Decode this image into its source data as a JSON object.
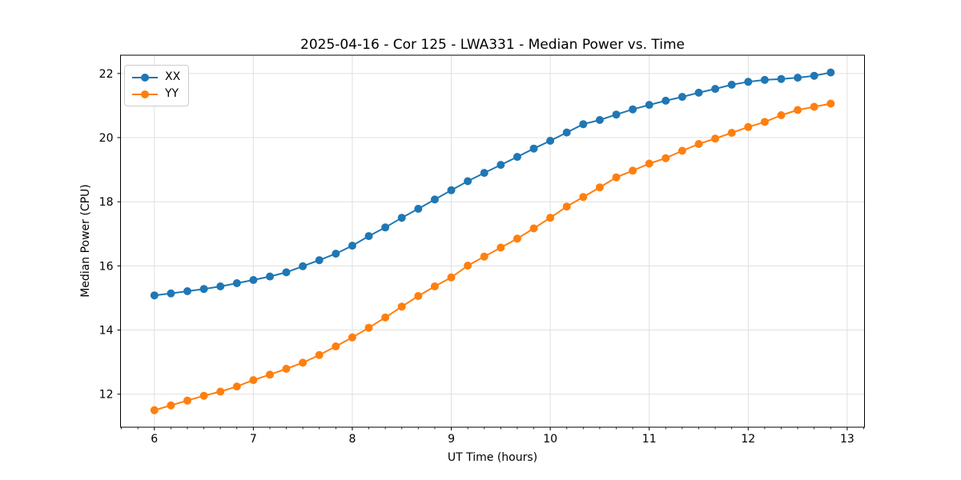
{
  "chart_data": {
    "type": "line",
    "title": "2025-04-16 - Cor 125 - LWA331 - Median Power vs. Time",
    "xlabel": "UT Time (hours)",
    "ylabel": "Median Power (CPU)",
    "x": [
      6.0,
      6.1667,
      6.3333,
      6.5,
      6.6667,
      6.8333,
      7.0,
      7.1667,
      7.3333,
      7.5,
      7.6667,
      7.8333,
      8.0,
      8.1667,
      8.3333,
      8.5,
      8.6667,
      8.8333,
      9.0,
      9.1667,
      9.3333,
      9.5,
      9.6667,
      9.8333,
      10.0,
      10.1667,
      10.3333,
      10.5,
      10.6667,
      10.8333,
      11.0,
      11.1667,
      11.3333,
      11.5,
      11.6667,
      11.8333,
      12.0,
      12.1667,
      12.3333,
      12.5,
      12.6667,
      12.8333
    ],
    "series": [
      {
        "name": "XX",
        "color": "#1f77b4",
        "values": [
          15.08,
          15.14,
          15.21,
          15.28,
          15.36,
          15.46,
          15.56,
          15.67,
          15.8,
          15.99,
          16.18,
          16.38,
          16.63,
          16.93,
          17.2,
          17.5,
          17.78,
          18.07,
          18.36,
          18.64,
          18.9,
          19.15,
          19.4,
          19.66,
          19.9,
          20.16,
          20.42,
          20.55,
          20.72,
          20.88,
          21.02,
          21.15,
          21.27,
          21.4,
          21.52,
          21.65,
          21.74,
          21.8,
          21.83,
          21.87,
          21.93,
          22.03
        ]
      },
      {
        "name": "YY",
        "color": "#ff7f0e",
        "values": [
          11.5,
          11.65,
          11.8,
          11.95,
          12.08,
          12.24,
          12.44,
          12.61,
          12.79,
          12.98,
          13.22,
          13.49,
          13.77,
          14.07,
          14.39,
          14.73,
          15.06,
          15.36,
          15.64,
          16.01,
          16.29,
          16.57,
          16.85,
          17.17,
          17.5,
          17.85,
          18.15,
          18.45,
          18.76,
          18.97,
          19.19,
          19.36,
          19.59,
          19.8,
          19.97,
          20.15,
          20.33,
          20.49,
          20.7,
          20.86,
          20.96,
          21.06
        ]
      }
    ],
    "xlim": [
      5.658,
      13.175
    ],
    "ylim": [
      10.97,
      22.57
    ],
    "x_ticks": [
      6,
      7,
      8,
      9,
      10,
      11,
      12,
      13
    ],
    "y_ticks": [
      12,
      14,
      16,
      18,
      20,
      22
    ],
    "x_minor_tick_step": 0.166667,
    "grid": true,
    "grid_color": "#e0e0e0",
    "axis_color": "#000000",
    "legend_position": "upper left",
    "marker": "circle",
    "marker_radius": 5,
    "line_width": 2
  }
}
